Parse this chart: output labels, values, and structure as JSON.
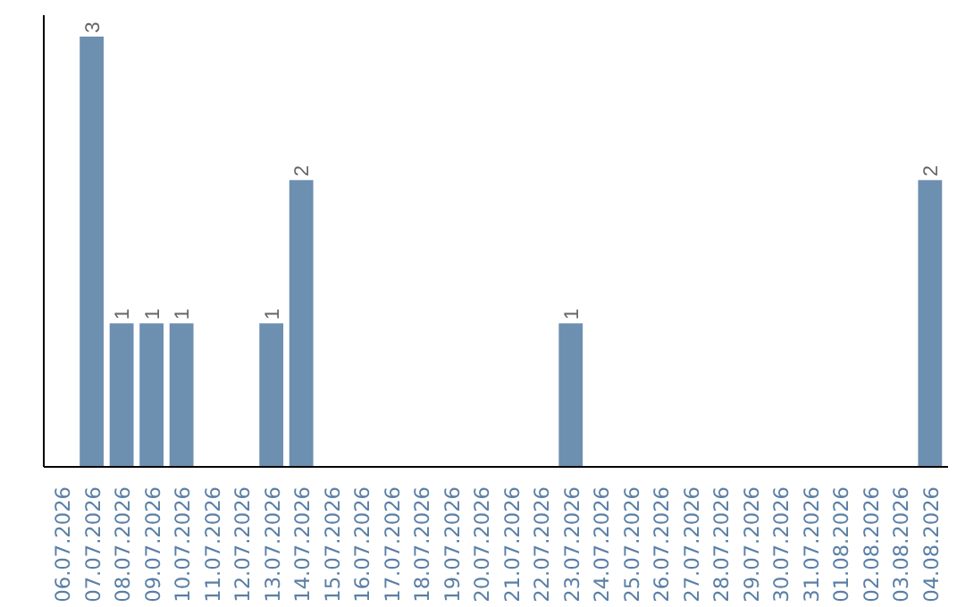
{
  "chart_data": {
    "type": "bar",
    "categories": [
      "06.07.2026",
      "07.07.2026",
      "08.07.2026",
      "09.07.2026",
      "10.07.2026",
      "11.07.2026",
      "12.07.2026",
      "13.07.2026",
      "14.07.2026",
      "15.07.2026",
      "16.07.2026",
      "17.07.2026",
      "18.07.2026",
      "19.07.2026",
      "20.07.2026",
      "21.07.2026",
      "22.07.2026",
      "23.07.2026",
      "24.07.2026",
      "25.07.2026",
      "26.07.2026",
      "27.07.2026",
      "28.07.2026",
      "29.07.2026",
      "30.07.2026",
      "31.07.2026",
      "01.08.2026",
      "02.08.2026",
      "03.08.2026",
      "04.08.2026"
    ],
    "values": [
      0,
      3,
      1,
      1,
      1,
      0,
      0,
      1,
      2,
      0,
      0,
      0,
      0,
      0,
      0,
      0,
      0,
      1,
      0,
      0,
      0,
      0,
      0,
      0,
      0,
      0,
      0,
      0,
      0,
      2
    ],
    "value_labels": [
      null,
      "3",
      "1",
      "1",
      "1",
      null,
      null,
      "1",
      "2",
      null,
      null,
      null,
      null,
      null,
      null,
      null,
      null,
      "1",
      null,
      null,
      null,
      null,
      null,
      null,
      null,
      null,
      null,
      null,
      null,
      "2"
    ],
    "color": "#6d8fb0",
    "ylim": [
      0,
      3.15
    ],
    "tick_labels": "x",
    "grid": false
  }
}
